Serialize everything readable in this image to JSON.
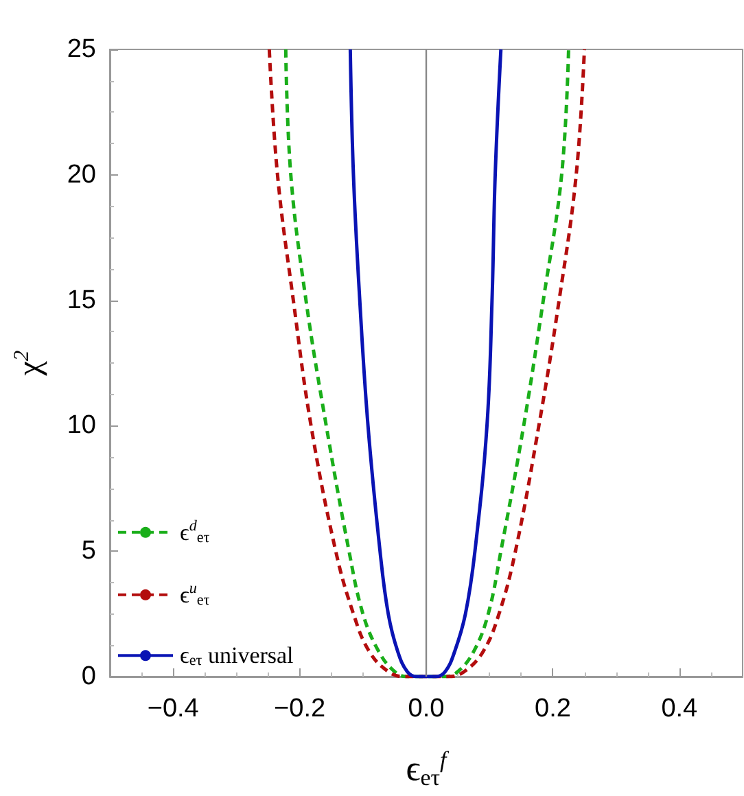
{
  "chart_data": {
    "type": "line",
    "xlabel": "ϵ$_{eτ}$$^{f}$",
    "ylabel": "χ$^{2}$",
    "xlim": [
      -0.5,
      0.5
    ],
    "xticks": [
      {
        "value": -0.4,
        "label": "−0.4"
      },
      {
        "value": -0.2,
        "label": "−0.2"
      },
      {
        "value": 0,
        "label": "0.0"
      },
      {
        "value": 0.2,
        "label": "0.2"
      },
      {
        "value": 0.4,
        "label": "0.4"
      }
    ],
    "ylim": [
      0,
      25
    ],
    "yticks": [
      0,
      5,
      10,
      15,
      20,
      25
    ],
    "grid": false,
    "legend": "bottom left",
    "marker": "none",
    "ref_lines": [
      {
        "axis": "x",
        "value": 0,
        "color": "#888888"
      }
    ],
    "series": [
      {
        "name": "ϵ$^{d}$$_{eτ}$",
        "color": "#1aae1a",
        "line_style": "dashed",
        "x": [
          -0.222,
          -0.214,
          -0.19,
          -0.158,
          -0.122,
          -0.1,
          -0.075,
          -0.05,
          -0.03,
          0.03,
          0.05,
          0.075,
          0.098,
          0.118,
          0.154,
          0.185,
          0.214,
          0.225
        ],
        "values": [
          25,
          20,
          15,
          10,
          5,
          2.5,
          1,
          0.2,
          0,
          0,
          0.2,
          1,
          2.5,
          5,
          10,
          15,
          20,
          25
        ]
      },
      {
        "name": "ϵ$^{u}$$_{eτ}$",
        "color": "#b30d0d",
        "line_style": "dashed",
        "x": [
          -0.248,
          -0.235,
          -0.21,
          -0.182,
          -0.143,
          -0.115,
          -0.09,
          -0.06,
          -0.035,
          0.035,
          0.06,
          0.09,
          0.115,
          0.141,
          0.178,
          0.21,
          0.237,
          0.25
        ],
        "values": [
          25,
          20,
          15,
          10,
          5,
          2.5,
          1,
          0.2,
          0,
          0,
          0.2,
          1,
          2.5,
          5,
          10,
          15,
          20,
          25
        ]
      },
      {
        "name": "ϵ$_{eτ}$ universal",
        "color": "#0a14b4",
        "line_style": "solid",
        "x": [
          -0.12,
          -0.115,
          -0.105,
          -0.092,
          -0.073,
          -0.06,
          -0.045,
          -0.03,
          -0.015,
          0.015,
          0.03,
          0.045,
          0.062,
          0.077,
          0.096,
          0.104,
          0.109,
          0.118
        ],
        "values": [
          25,
          20,
          15,
          10,
          5,
          2.5,
          1,
          0.2,
          0,
          0,
          0.2,
          1,
          2.5,
          5,
          10,
          15,
          20,
          25
        ]
      }
    ]
  }
}
